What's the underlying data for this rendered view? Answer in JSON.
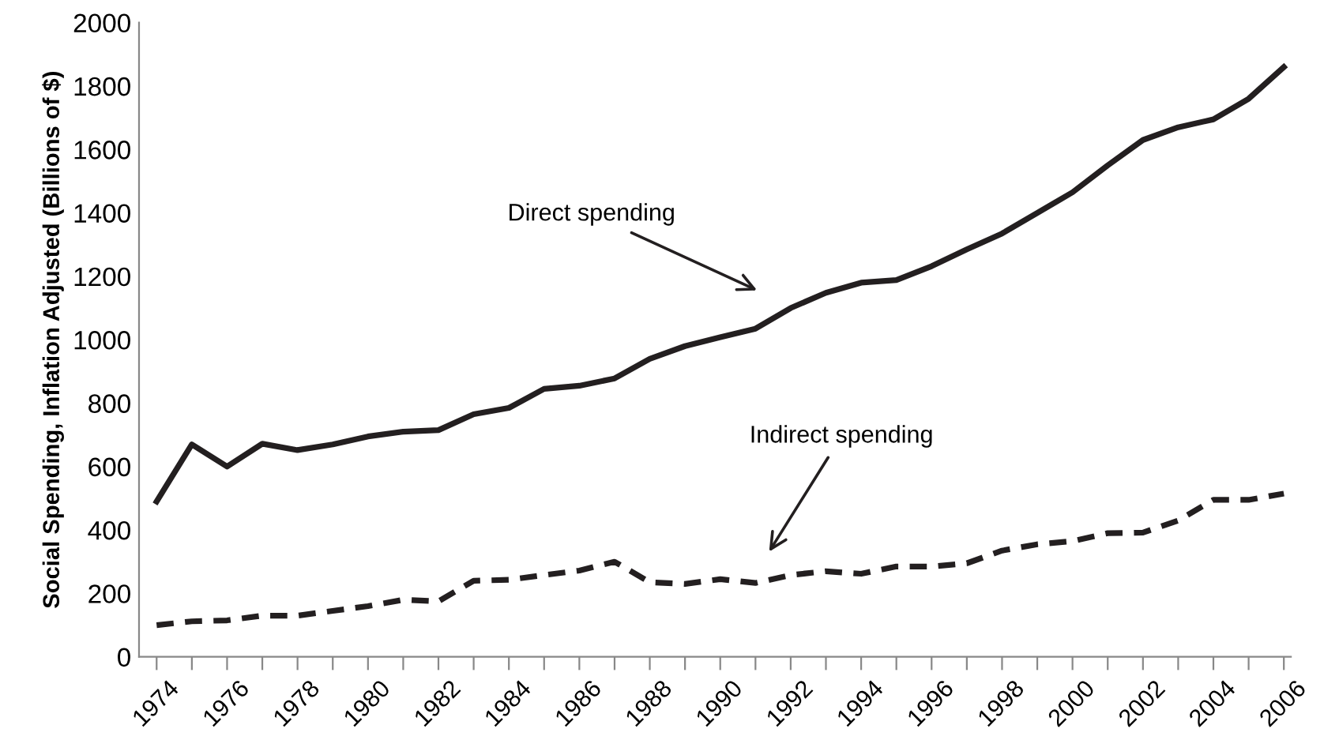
{
  "chart_data": {
    "type": "line",
    "ylabel": "Social Spending, Inflation Adjusted (Billions of $)",
    "x": [
      1974,
      1975,
      1976,
      1977,
      1978,
      1979,
      1980,
      1981,
      1982,
      1983,
      1984,
      1985,
      1986,
      1987,
      1988,
      1989,
      1990,
      1991,
      1992,
      1993,
      1994,
      1995,
      1996,
      1997,
      1998,
      1999,
      2000,
      2001,
      2002,
      2003,
      2004,
      2005,
      2006
    ],
    "series": [
      {
        "color": "#231f20",
        "line_style": "solid",
        "values": [
          490,
          670,
          600,
          672,
          652,
          670,
          695,
          710,
          715,
          765,
          785,
          845,
          855,
          878,
          940,
          980,
          1008,
          1035,
          1100,
          1148,
          1180,
          1188,
          1232,
          1285,
          1335,
          1400,
          1465,
          1550,
          1630,
          1670,
          1695,
          1760,
          1860
        ]
      },
      {
        "color": "#231f20",
        "line_style": "dashed",
        "values": [
          100,
          112,
          115,
          130,
          130,
          145,
          160,
          180,
          175,
          240,
          243,
          258,
          272,
          300,
          235,
          230,
          245,
          233,
          258,
          270,
          262,
          285,
          285,
          295,
          335,
          355,
          365,
          390,
          392,
          430,
          495,
          495,
          515
        ]
      }
    ],
    "xlim": [
      1973.5,
      2006.2
    ],
    "xticks": [
      1974,
      {
        "value": 1975,
        "label": null
      },
      1976,
      {
        "value": 1977,
        "label": null
      },
      1978,
      {
        "value": 1979,
        "label": null
      },
      1980,
      {
        "value": 1981,
        "label": null
      },
      1982,
      {
        "value": 1983,
        "label": null
      },
      1984,
      {
        "value": 1985,
        "label": null
      },
      1986,
      {
        "value": 1987,
        "label": null
      },
      1988,
      {
        "value": 1989,
        "label": null
      },
      1990,
      {
        "value": 1991,
        "label": null
      },
      1992,
      {
        "value": 1993,
        "label": null
      },
      1994,
      {
        "value": 1995,
        "label": null
      },
      1996,
      {
        "value": 1997,
        "label": null
      },
      1998,
      {
        "value": 1999,
        "label": null
      },
      2000,
      {
        "value": 2001,
        "label": null
      },
      2002,
      {
        "value": 2003,
        "label": null
      },
      2004,
      {
        "value": 2005,
        "label": null
      },
      2006
    ],
    "ylim": [
      0,
      2000
    ],
    "yticks": [
      0,
      200,
      400,
      600,
      800,
      1000,
      1200,
      1400,
      1600,
      1800,
      2000
    ],
    "grid": false,
    "marker": "none",
    "annotations": [
      "Direct spending",
      "Indirect spending"
    ]
  }
}
